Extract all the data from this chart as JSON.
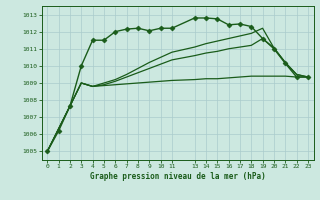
{
  "background_color": "#cce8e0",
  "grid_color": "#aacccc",
  "line_color": "#1a5c1a",
  "title": "Graphe pression niveau de la mer (hPa)",
  "xlim": [
    -0.5,
    23.5
  ],
  "ylim": [
    1004.5,
    1013.5
  ],
  "yticks": [
    1005,
    1006,
    1007,
    1008,
    1009,
    1010,
    1011,
    1012,
    1013
  ],
  "xtick_positions": [
    0,
    1,
    2,
    3,
    4,
    5,
    6,
    7,
    8,
    9,
    10,
    11,
    13,
    14,
    15,
    16,
    17,
    18,
    19,
    20,
    21,
    22,
    23
  ],
  "xtick_labels": [
    "0",
    "1",
    "2",
    "3",
    "4",
    "5",
    "6",
    "7",
    "8",
    "9",
    "10",
    "11",
    "13",
    "14",
    "15",
    "16",
    "17",
    "18",
    "19",
    "20",
    "21",
    "22",
    "23"
  ],
  "series": [
    {
      "x": [
        0,
        1,
        2,
        3,
        4,
        5,
        6,
        7,
        8,
        9,
        10,
        11,
        13,
        14,
        15,
        16,
        17,
        18,
        19,
        20,
        21,
        22,
        23
      ],
      "y": [
        1005.0,
        1006.2,
        1007.65,
        1010.0,
        1011.5,
        1011.5,
        1012.0,
        1012.15,
        1012.2,
        1012.05,
        1012.2,
        1012.2,
        1012.8,
        1012.8,
        1012.75,
        1012.4,
        1012.45,
        1012.3,
        1011.6,
        1011.0,
        1010.15,
        1009.35,
        1009.35
      ],
      "marker": "D",
      "markersize": 2.5,
      "linewidth": 1.0,
      "color": "#1a5c1a"
    },
    {
      "x": [
        0,
        2,
        3,
        4,
        5,
        6,
        7,
        8,
        9,
        10,
        11,
        13,
        14,
        15,
        16,
        17,
        18,
        19,
        20,
        21,
        22,
        23
      ],
      "y": [
        1005.0,
        1007.65,
        1009.0,
        1008.8,
        1008.85,
        1008.9,
        1008.95,
        1009.0,
        1009.05,
        1009.1,
        1009.15,
        1009.2,
        1009.25,
        1009.25,
        1009.3,
        1009.35,
        1009.4,
        1009.4,
        1009.4,
        1009.4,
        1009.35,
        1009.35
      ],
      "marker": null,
      "linewidth": 0.9,
      "color": "#1a5c1a"
    },
    {
      "x": [
        0,
        2,
        3,
        4,
        5,
        6,
        7,
        8,
        9,
        10,
        11,
        13,
        14,
        15,
        16,
        17,
        18,
        19,
        20,
        21,
        22,
        23
      ],
      "y": [
        1005.0,
        1007.65,
        1009.0,
        1008.8,
        1008.9,
        1009.1,
        1009.35,
        1009.6,
        1009.85,
        1010.1,
        1010.35,
        1010.6,
        1010.75,
        1010.85,
        1011.0,
        1011.1,
        1011.2,
        1011.6,
        1011.05,
        1010.2,
        1009.5,
        1009.35
      ],
      "marker": null,
      "linewidth": 0.9,
      "color": "#1a5c1a"
    },
    {
      "x": [
        0,
        2,
        3,
        4,
        5,
        6,
        7,
        8,
        9,
        10,
        11,
        13,
        14,
        15,
        16,
        17,
        18,
        19,
        20,
        21,
        22,
        23
      ],
      "y": [
        1005.0,
        1007.65,
        1009.0,
        1008.8,
        1009.0,
        1009.2,
        1009.5,
        1009.85,
        1010.2,
        1010.5,
        1010.8,
        1011.1,
        1011.3,
        1011.45,
        1011.6,
        1011.75,
        1011.9,
        1012.2,
        1011.05,
        1010.2,
        1009.5,
        1009.35
      ],
      "marker": null,
      "linewidth": 0.9,
      "color": "#1a5c1a"
    }
  ]
}
